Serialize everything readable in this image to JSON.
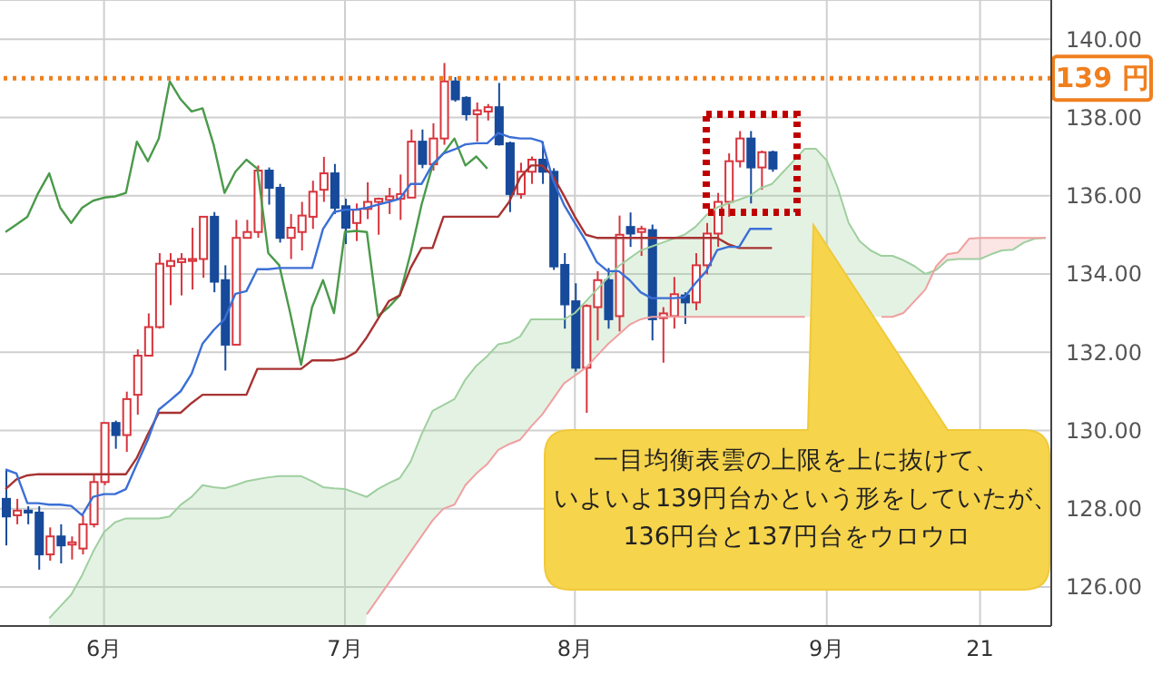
{
  "chart_data": {
    "type": "candlestick",
    "categories": [
      null,
      null,
      null,
      null,
      null,
      null,
      null,
      null,
      null,
      "6月",
      null,
      null,
      null,
      null,
      null,
      null,
      null,
      null,
      null,
      null,
      null,
      null,
      null,
      null,
      null,
      null,
      null,
      null,
      null,
      null,
      null,
      "7月",
      null,
      null,
      null,
      null,
      null,
      null,
      null,
      null,
      null,
      null,
      null,
      null,
      null,
      null,
      null,
      null,
      null,
      null,
      null,
      null,
      "8月",
      null,
      null,
      null,
      null,
      null,
      null,
      null,
      null,
      null,
      null,
      null,
      null,
      null,
      null,
      null,
      null,
      null,
      null,
      null,
      null,
      null,
      null,
      "9月",
      null,
      null,
      null,
      null,
      null,
      null,
      null,
      null,
      null,
      null,
      null,
      null,
      null,
      "21",
      null,
      null,
      null,
      null,
      null,
      null
    ],
    "ohlc": [
      [
        128.25,
        129.0,
        127.06,
        127.8
      ],
      [
        127.83,
        128.25,
        127.6,
        127.95
      ],
      [
        127.95,
        128.06,
        127.6,
        127.9
      ],
      [
        127.9,
        128.06,
        126.44,
        126.83
      ],
      [
        126.83,
        127.52,
        126.67,
        127.29
      ],
      [
        127.29,
        127.6,
        126.6,
        127.06
      ],
      [
        127.08,
        127.29,
        126.7,
        127.14
      ],
      [
        126.98,
        127.83,
        126.83,
        127.6
      ],
      [
        127.6,
        128.86,
        127.52,
        128.68
      ],
      [
        128.68,
        130.2,
        128.6,
        130.19
      ],
      [
        130.19,
        130.25,
        129.53,
        129.88
      ],
      [
        129.88,
        130.99,
        129.45,
        130.8
      ],
      [
        130.91,
        132.07,
        130.4,
        131.91
      ],
      [
        131.91,
        132.99,
        131.9,
        132.64
      ],
      [
        132.64,
        134.53,
        132.6,
        134.26
      ],
      [
        134.2,
        134.53,
        133.2,
        134.33
      ],
      [
        134.3,
        134.53,
        133.45,
        134.38
      ],
      [
        134.33,
        135.18,
        133.6,
        134.38
      ],
      [
        134.38,
        135.46,
        133.9,
        135.46
      ],
      [
        135.46,
        135.58,
        133.53,
        133.8
      ],
      [
        133.84,
        134.22,
        131.53,
        132.19
      ],
      [
        132.19,
        135.38,
        132.19,
        134.92
      ],
      [
        134.92,
        135.38,
        134.9,
        135.07
      ],
      [
        135.07,
        136.77,
        134.92,
        136.64
      ],
      [
        136.64,
        136.72,
        135.77,
        136.2
      ],
      [
        136.2,
        136.3,
        134.8,
        134.92
      ],
      [
        134.92,
        135.53,
        134.38,
        135.18
      ],
      [
        135.07,
        135.84,
        134.6,
        135.49
      ],
      [
        135.46,
        136.38,
        135.15,
        136.1
      ],
      [
        136.15,
        136.99,
        135.84,
        136.57
      ],
      [
        136.57,
        136.81,
        135.53,
        135.69
      ],
      [
        135.73,
        135.92,
        134.76,
        135.18
      ],
      [
        135.3,
        135.8,
        134.84,
        135.64
      ],
      [
        135.66,
        136.34,
        135.4,
        135.84
      ],
      [
        135.84,
        135.95,
        135.0,
        135.92
      ],
      [
        135.89,
        136.2,
        135.53,
        135.98
      ],
      [
        135.92,
        136.54,
        135.38,
        136.04
      ],
      [
        135.95,
        137.69,
        135.95,
        137.38
      ],
      [
        137.38,
        137.69,
        136.7,
        136.81
      ],
      [
        136.8,
        137.85,
        136.64,
        137.46
      ],
      [
        137.46,
        139.39,
        137.3,
        138.92
      ],
      [
        138.92,
        139.03,
        138.4,
        138.46
      ],
      [
        138.5,
        138.54,
        137.92,
        138.08
      ],
      [
        138.08,
        138.38,
        137.38,
        138.18
      ],
      [
        138.15,
        138.34,
        137.92,
        138.26
      ],
      [
        138.26,
        138.88,
        137.28,
        137.31
      ],
      [
        137.34,
        137.38,
        135.58,
        136.04
      ],
      [
        136.04,
        136.84,
        135.92,
        136.61
      ],
      [
        136.61,
        137.0,
        136.3,
        136.92
      ],
      [
        136.92,
        137.38,
        136.3,
        136.61
      ],
      [
        136.61,
        136.7,
        134.1,
        134.19
      ],
      [
        134.23,
        134.53,
        132.6,
        133.22
      ],
      [
        133.3,
        133.76,
        131.5,
        131.6
      ],
      [
        131.6,
        133.22,
        130.45,
        133.18
      ],
      [
        133.15,
        134.07,
        132.3,
        133.84
      ],
      [
        133.84,
        134.15,
        132.6,
        132.84
      ],
      [
        132.92,
        135.49,
        132.53,
        135.0
      ],
      [
        135.2,
        135.57,
        134.69,
        135.03
      ],
      [
        135.07,
        135.23,
        134.46,
        135.15
      ],
      [
        135.12,
        135.26,
        132.3,
        132.84
      ],
      [
        132.87,
        133.15,
        131.73,
        132.99
      ],
      [
        132.92,
        133.92,
        132.6,
        133.48
      ],
      [
        133.45,
        133.53,
        132.72,
        133.27
      ],
      [
        133.27,
        134.53,
        133.07,
        134.22
      ],
      [
        134.22,
        135.3,
        133.99,
        135.03
      ],
      [
        135.03,
        136.07,
        134.69,
        135.84
      ],
      [
        135.84,
        137.08,
        135.46,
        136.88
      ],
      [
        136.88,
        137.65,
        136.72,
        137.46
      ],
      [
        137.46,
        137.65,
        135.8,
        136.72
      ],
      [
        136.72,
        137.15,
        136.15,
        137.11
      ],
      [
        137.11,
        137.15,
        136.61,
        136.69
      ],
      null,
      null,
      null,
      null,
      null,
      null,
      null,
      null,
      null,
      null,
      null,
      null,
      null,
      null,
      null,
      null,
      null,
      null,
      null,
      null,
      null,
      null,
      null,
      null,
      null
    ],
    "colors": [
      "#174a9a",
      "#d8343c",
      "#174a9a",
      "#174a9a",
      "#d8343c",
      "#174a9a",
      "#d8343c",
      "#d8343c",
      "#d8343c",
      "#d8343c",
      "#174a9a",
      "#d8343c",
      "#d8343c",
      "#d8343c",
      "#d8343c",
      "#d8343c",
      "#d8343c",
      "#d8343c",
      "#d8343c",
      "#174a9a",
      "#174a9a",
      "#d8343c",
      "#d8343c",
      "#d8343c",
      "#174a9a",
      "#174a9a",
      "#d8343c",
      "#d8343c",
      "#d8343c",
      "#d8343c",
      "#174a9a",
      "#174a9a",
      "#d8343c",
      "#d8343c",
      "#d8343c",
      "#d8343c",
      "#d8343c",
      "#d8343c",
      "#174a9a",
      "#d8343c",
      "#d8343c",
      "#174a9a",
      "#174a9a",
      "#d8343c",
      "#d8343c",
      "#174a9a",
      "#174a9a",
      "#d8343c",
      "#d8343c",
      "#174a9a",
      "#174a9a",
      "#174a9a",
      "#174a9a",
      "#d8343c",
      "#d8343c",
      "#174a9a",
      "#d8343c",
      "#174a9a",
      "#d8343c",
      "#174a9a",
      "#d8343c",
      "#d8343c",
      "#174a9a",
      "#d8343c",
      "#d8343c",
      "#d8343c",
      "#d8343c",
      "#d8343c",
      "#174a9a",
      "#d8343c",
      "#174a9a",
      null,
      null,
      null,
      null,
      null,
      null,
      null,
      null,
      null,
      null,
      null,
      null,
      null,
      null,
      null,
      null,
      null,
      null,
      null,
      null,
      null,
      null,
      null,
      null,
      null
    ],
    "series": [
      {
        "type": "area",
        "color": "#9fcf9f",
        "values": [
          null,
          null,
          null,
          null,
          125.2,
          125.5,
          125.8,
          126.3,
          126.9,
          127.4,
          127.65,
          127.75,
          127.75,
          127.75,
          127.75,
          127.8,
          128.1,
          128.3,
          128.6,
          128.55,
          128.52,
          128.6,
          128.7,
          128.75,
          128.8,
          128.83,
          128.83,
          128.83,
          128.7,
          128.55,
          128.52,
          128.5,
          128.4,
          128.3,
          128.5,
          128.65,
          128.78,
          129.2,
          129.9,
          130.5,
          130.65,
          130.8,
          131.3,
          131.65,
          131.9,
          132.2,
          132.25,
          132.4,
          132.84,
          132.84,
          132.84,
          132.84,
          133.0,
          133.3,
          133.6,
          133.9,
          134.2,
          134.4,
          134.6,
          134.7,
          134.8,
          134.9,
          135.0,
          135.2,
          135.5,
          135.7,
          135.8,
          135.9,
          136.0,
          136.2,
          136.3,
          136.6,
          136.9,
          137.2,
          137.2,
          136.9,
          136.2,
          135.3,
          134.84,
          134.6,
          134.46,
          134.46,
          134.35,
          134.2,
          134.0,
          134.1,
          134.35,
          134.38,
          134.38,
          134.38,
          134.5,
          134.6,
          134.62,
          134.8,
          134.9,
          134.92
        ]
      },
      {
        "type": "area",
        "color": "#f0a0a0",
        "values": [
          null,
          null,
          null,
          null,
          null,
          null,
          null,
          null,
          null,
          null,
          null,
          null,
          null,
          null,
          null,
          null,
          null,
          null,
          null,
          null,
          null,
          null,
          null,
          null,
          null,
          null,
          null,
          null,
          null,
          null,
          null,
          null,
          null,
          125.3,
          125.7,
          126.1,
          126.5,
          126.9,
          127.3,
          127.7,
          128.0,
          128.1,
          128.6,
          128.9,
          129.14,
          129.5,
          129.65,
          129.76,
          130.1,
          130.4,
          130.8,
          131.2,
          131.4,
          131.6,
          131.9,
          132.2,
          132.45,
          132.7,
          132.84,
          132.9,
          132.9,
          132.9,
          132.9,
          132.9,
          132.9,
          132.9,
          132.9,
          132.9,
          132.9,
          132.9,
          132.9,
          132.9,
          132.9,
          132.9,
          null,
          null,
          null,
          null,
          null,
          null,
          132.9,
          132.9,
          133.0,
          133.3,
          133.6,
          134.2,
          134.5,
          134.55,
          134.9,
          134.92,
          134.92,
          134.92,
          134.92,
          134.92,
          134.92,
          134.92
        ]
      },
      {
        "type": "line",
        "color": "#4a9a4a",
        "values": [
          135.07,
          135.26,
          135.46,
          136.07,
          136.57,
          135.69,
          135.3,
          135.69,
          135.87,
          135.95,
          135.98,
          136.07,
          137.38,
          136.88,
          137.46,
          138.92,
          138.46,
          138.15,
          138.23,
          137.31,
          136.07,
          136.61,
          136.92,
          136.69,
          134.53,
          134.22,
          133.0,
          131.68,
          133.15,
          133.84,
          133.0,
          135.07,
          135.1,
          135.07,
          132.92,
          133.15,
          133.45,
          134.53,
          135.77,
          136.77,
          137.08,
          137.46,
          136.77,
          137.0,
          136.69,
          null,
          null,
          null,
          null,
          null,
          null,
          null,
          null,
          null,
          null,
          null,
          null,
          null,
          null,
          null,
          null,
          null,
          null,
          null,
          null,
          null,
          null,
          null,
          null,
          null,
          null,
          null,
          null,
          null,
          null,
          null,
          null,
          null,
          null,
          null,
          null,
          null,
          null,
          null,
          null,
          null,
          null,
          null,
          null,
          null,
          null,
          null,
          null,
          null,
          null,
          null
        ]
      },
      {
        "type": "line",
        "color": "#a83232",
        "values": [
          128.5,
          128.75,
          128.85,
          128.88,
          128.88,
          128.88,
          128.88,
          128.88,
          128.88,
          128.88,
          128.88,
          128.88,
          129.3,
          129.9,
          130.45,
          130.45,
          130.45,
          130.7,
          130.91,
          130.91,
          130.91,
          130.91,
          130.91,
          131.57,
          131.57,
          131.57,
          131.57,
          131.57,
          131.79,
          131.79,
          131.79,
          131.84,
          132.0,
          132.38,
          132.84,
          133.3,
          133.45,
          134.15,
          134.66,
          134.66,
          135.46,
          135.46,
          135.46,
          135.46,
          135.46,
          135.46,
          135.84,
          136.46,
          136.77,
          136.77,
          136.5,
          136.0,
          135.46,
          135.0,
          134.92,
          134.92,
          134.92,
          134.92,
          134.92,
          134.92,
          134.92,
          134.92,
          134.92,
          134.92,
          134.92,
          134.92,
          134.76,
          134.66,
          134.66,
          134.66,
          134.66,
          null,
          null,
          null,
          null,
          null,
          null,
          null,
          null,
          null,
          null,
          null,
          null,
          null,
          null,
          null,
          null,
          null,
          null,
          null,
          null,
          null,
          null,
          null,
          null,
          null
        ]
      },
      {
        "type": "line",
        "color": "#3b6fd6",
        "values": [
          129.0,
          128.9,
          128.14,
          128.14,
          128.1,
          128.1,
          128.07,
          127.83,
          128.3,
          128.37,
          128.37,
          128.5,
          129.14,
          129.76,
          130.53,
          130.76,
          131.0,
          131.45,
          132.22,
          132.56,
          132.84,
          133.49,
          133.56,
          134.12,
          134.12,
          134.15,
          134.15,
          134.15,
          134.15,
          135.15,
          135.58,
          135.64,
          135.64,
          135.69,
          135.77,
          135.84,
          135.92,
          136.3,
          136.3,
          136.8,
          137.08,
          137.18,
          137.31,
          137.34,
          137.34,
          137.6,
          137.5,
          137.46,
          137.46,
          137.38,
          136.4,
          135.77,
          135.3,
          134.84,
          134.3,
          134.07,
          134.07,
          133.84,
          133.53,
          133.38,
          133.38,
          133.38,
          133.4,
          133.76,
          134.07,
          134.61,
          134.69,
          134.69,
          135.15,
          135.15,
          135.15,
          null,
          null,
          null,
          null,
          null,
          null,
          null,
          null,
          null,
          null,
          null,
          null,
          null,
          null,
          null,
          null,
          null,
          null,
          null,
          null,
          null,
          null,
          null,
          null,
          null
        ]
      }
    ],
    "ylim": [
      125,
      141
    ],
    "yticks": [
      {
        "value": 126,
        "label": "126.00"
      },
      {
        "value": 128,
        "label": "128.00"
      },
      {
        "value": 130,
        "label": "130.00"
      },
      {
        "value": 132,
        "label": "132.00"
      },
      {
        "value": 134,
        "label": "134.00"
      },
      {
        "value": 136,
        "label": "136.00"
      },
      {
        "value": 138,
        "label": "138.00"
      },
      {
        "value": 140,
        "label": "140.00"
      }
    ],
    "grid": true,
    "ref_lines": [
      {
        "axis": "y",
        "value": 139,
        "label": "139 円",
        "color": "#f07f1e",
        "line_style": "dotted"
      }
    ],
    "annotations": [
      "一目均衡表雲の上限を上に抜けて、いよいよ139円台かという形をしていたが、136円台と137円台をウロウロ"
    ]
  }
}
